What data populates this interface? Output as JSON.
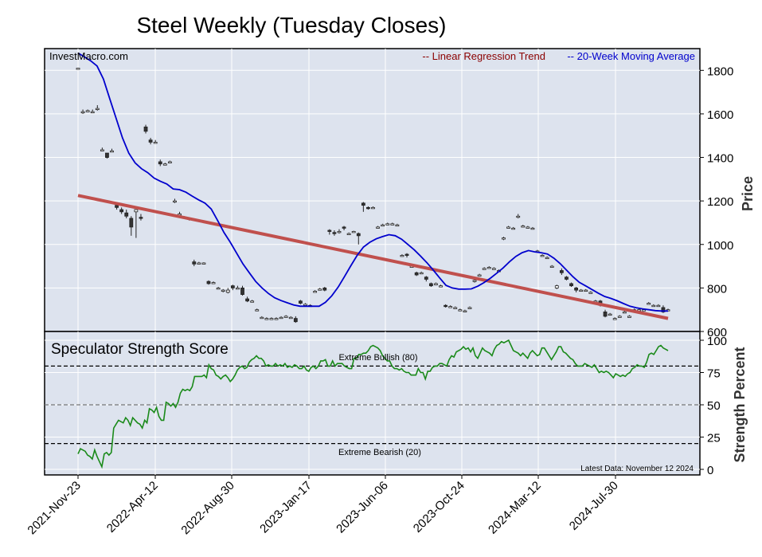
{
  "chart_data": [
    {
      "type": "candlestick",
      "title": "Steel Weekly (Tuesday Closes)",
      "source": "InvestMacro.com",
      "ylabel": "Price",
      "ylim": [
        600,
        1900
      ],
      "yticks": [
        600,
        800,
        1000,
        1200,
        1400,
        1600,
        1800
      ],
      "xticks": [
        "2021-Nov-23",
        "2022-Apr-12",
        "2022-Aug-30",
        "2023-Jan-17",
        "2023-Jun-06",
        "2023-Oct-24",
        "2024-Mar-12",
        "2024-Jul-30"
      ],
      "legend": [
        "-- Linear Regression Trend",
        "-- 20-Week Moving Average"
      ],
      "legend_colors": [
        "#8b0000",
        "#0000cd"
      ],
      "trend": {
        "start": 1225,
        "end": 660
      },
      "moving_average": [
        1880,
        1862,
        1844,
        1820,
        1760,
        1670,
        1580,
        1490,
        1420,
        1375,
        1348,
        1330,
        1305,
        1290,
        1278,
        1255,
        1252,
        1240,
        1222,
        1205,
        1190,
        1163,
        1110,
        1055,
        1010,
        960,
        910,
        870,
        830,
        800,
        775,
        755,
        742,
        732,
        722,
        716,
        716,
        716,
        716,
        734,
        764,
        804,
        852,
        902,
        950,
        988,
        1010,
        1026,
        1036,
        1045,
        1040,
        1024,
        1000,
        975,
        946,
        916,
        882,
        846,
        812,
        800,
        795,
        795,
        796,
        808,
        825,
        845,
        868,
        892,
        920,
        945,
        962,
        972,
        966,
        962,
        956,
        937,
        912,
        882,
        852,
        826,
        810,
        793,
        776,
        761,
        752,
        741,
        728,
        716,
        709,
        704,
        700,
        696,
        694,
        694
      ],
      "candles": [
        [
          1810,
          1810,
          1810,
          1810
        ],
        [
          1610,
          1610,
          1620,
          1600
        ],
        [
          1615,
          1615,
          1620,
          1610
        ],
        [
          1610,
          1610,
          1620,
          1605
        ],
        [
          1625,
          1625,
          1640,
          1615
        ],
        [
          1435,
          1435,
          1445,
          1430
        ],
        [
          1420,
          1400,
          1420,
          1395
        ],
        [
          1430,
          1430,
          1440,
          1425
        ],
        [
          1180,
          1170,
          1190,
          1160
        ],
        [
          1160,
          1150,
          1170,
          1140
        ],
        [
          1145,
          1130,
          1160,
          1120
        ],
        [
          1120,
          1080,
          1130,
          1040
        ],
        [
          1150,
          1160,
          1160,
          1030
        ],
        [
          1125,
          1120,
          1140,
          1110
        ],
        [
          1540,
          1520,
          1550,
          1510
        ],
        [
          1480,
          1470,
          1490,
          1460
        ],
        [
          1470,
          1470,
          1480,
          1465
        ],
        [
          1380,
          1370,
          1390,
          1360
        ],
        [
          1370,
          1370,
          1375,
          1365
        ],
        [
          1380,
          1380,
          1385,
          1375
        ],
        [
          1200,
          1200,
          1210,
          1190
        ],
        [
          1140,
          1140,
          1150,
          1130
        ],
        [
          1125,
          1125,
          1130,
          1120
        ],
        [
          1120,
          1115,
          1125,
          1110
        ],
        [
          920,
          910,
          930,
          900
        ],
        [
          915,
          915,
          920,
          910
        ],
        [
          915,
          915,
          918,
          912
        ],
        [
          830,
          820,
          835,
          815
        ],
        [
          825,
          825,
          830,
          820
        ],
        [
          800,
          800,
          805,
          795
        ],
        [
          790,
          790,
          795,
          780
        ],
        [
          780,
          790,
          800,
          775
        ],
        [
          810,
          800,
          815,
          790
        ],
        [
          800,
          800,
          810,
          795
        ],
        [
          800,
          770,
          810,
          765
        ],
        [
          750,
          740,
          760,
          735
        ],
        [
          740,
          740,
          745,
          735
        ],
        [
          700,
          700,
          705,
          695
        ],
        [
          665,
          665,
          670,
          660
        ],
        [
          660,
          660,
          665,
          655
        ],
        [
          660,
          660,
          665,
          655
        ],
        [
          660,
          660,
          665,
          655
        ],
        [
          665,
          665,
          670,
          660
        ],
        [
          670,
          670,
          675,
          665
        ],
        [
          665,
          665,
          670,
          660
        ],
        [
          660,
          645,
          670,
          640
        ],
        [
          740,
          730,
          745,
          725
        ],
        [
          725,
          725,
          730,
          720
        ],
        [
          720,
          720,
          725,
          715
        ],
        [
          785,
          785,
          790,
          780
        ],
        [
          795,
          795,
          800,
          790
        ],
        [
          800,
          790,
          805,
          785
        ],
        [
          1065,
          1060,
          1070,
          1045
        ],
        [
          1055,
          1050,
          1065,
          1040
        ],
        [
          1060,
          1060,
          1070,
          1050
        ],
        [
          1080,
          1075,
          1085,
          1065
        ],
        [
          1050,
          1050,
          1055,
          1045
        ],
        [
          1060,
          1060,
          1063,
          1057
        ],
        [
          1050,
          1040,
          1055,
          1000
        ],
        [
          1190,
          1180,
          1195,
          1150
        ],
        [
          1170,
          1165,
          1175,
          1160
        ],
        [
          1170,
          1170,
          1175,
          1165
        ],
        [
          1080,
          1080,
          1085,
          1075
        ],
        [
          1090,
          1090,
          1095,
          1085
        ],
        [
          1095,
          1095,
          1100,
          1090
        ],
        [
          1095,
          1095,
          1100,
          1090
        ],
        [
          1090,
          1090,
          1095,
          1085
        ],
        [
          950,
          950,
          955,
          945
        ],
        [
          955,
          950,
          960,
          940
        ],
        [
          900,
          900,
          905,
          895
        ],
        [
          870,
          860,
          875,
          855
        ],
        [
          870,
          870,
          875,
          865
        ],
        [
          850,
          840,
          855,
          830
        ],
        [
          820,
          810,
          825,
          805
        ],
        [
          820,
          820,
          825,
          815
        ],
        [
          810,
          810,
          815,
          805
        ],
        [
          720,
          715,
          725,
          710
        ],
        [
          715,
          715,
          720,
          710
        ],
        [
          710,
          710,
          715,
          705
        ],
        [
          700,
          700,
          705,
          695
        ],
        [
          695,
          695,
          700,
          690
        ],
        [
          710,
          710,
          715,
          705
        ],
        [
          835,
          835,
          840,
          825
        ],
        [
          860,
          860,
          865,
          855
        ],
        [
          890,
          890,
          895,
          885
        ],
        [
          895,
          895,
          900,
          890
        ],
        [
          890,
          890,
          895,
          885
        ],
        [
          880,
          880,
          885,
          875
        ],
        [
          1030,
          1030,
          1035,
          1020
        ],
        [
          1080,
          1080,
          1085,
          1075
        ],
        [
          1075,
          1075,
          1080,
          1070
        ],
        [
          1130,
          1130,
          1140,
          1120
        ],
        [
          1085,
          1085,
          1090,
          1080
        ],
        [
          1080,
          1080,
          1085,
          1075
        ],
        [
          1075,
          1075,
          1080,
          1070
        ],
        [
          970,
          970,
          975,
          965
        ],
        [
          950,
          950,
          955,
          945
        ],
        [
          940,
          940,
          945,
          935
        ],
        [
          900,
          900,
          905,
          895
        ],
        [
          800,
          810,
          815,
          795
        ],
        [
          880,
          870,
          890,
          860
        ],
        [
          850,
          840,
          855,
          835
        ],
        [
          820,
          810,
          825,
          805
        ],
        [
          800,
          790,
          805,
          780
        ],
        [
          790,
          790,
          795,
          785
        ],
        [
          790,
          790,
          795,
          785
        ],
        [
          780,
          780,
          785,
          775
        ],
        [
          740,
          740,
          745,
          735
        ],
        [
          740,
          720,
          745,
          715
        ],
        [
          690,
          670,
          700,
          665
        ],
        [
          680,
          680,
          685,
          675
        ],
        [
          660,
          660,
          665,
          655
        ],
        [
          670,
          670,
          675,
          665
        ],
        [
          690,
          690,
          695,
          685
        ],
        [
          670,
          670,
          675,
          665
        ],
        [
          700,
          700,
          705,
          695
        ],
        [
          700,
          700,
          705,
          695
        ],
        [
          700,
          700,
          705,
          695
        ],
        [
          730,
          730,
          735,
          725
        ],
        [
          720,
          720,
          725,
          715
        ],
        [
          720,
          720,
          725,
          715
        ],
        [
          710,
          690,
          720,
          685
        ],
        [
          700,
          700,
          705,
          695
        ]
      ]
    },
    {
      "type": "line",
      "title": "Speculator Strength Score",
      "ylabel": "Strength Percent",
      "ylim": [
        0,
        100
      ],
      "yticks": [
        0,
        25,
        50,
        75,
        100
      ],
      "annotations": {
        "bullish": "Extreme Bullish (80)",
        "bearish": "Extreme Bearish (20)",
        "latest": "Latest Data: November 12 2024"
      },
      "levels": {
        "bullish": 80,
        "bearish": 20
      },
      "values": [
        12,
        16,
        15,
        14,
        11,
        10,
        8,
        15,
        10,
        6,
        2,
        12,
        13,
        11,
        13,
        32,
        35,
        38,
        37,
        36,
        40,
        38,
        34,
        40,
        38,
        36,
        35,
        32,
        38,
        36,
        47,
        46,
        44,
        48,
        41,
        38,
        38,
        52,
        51,
        49,
        51,
        48,
        52,
        59,
        62,
        61,
        62,
        61,
        64,
        72,
        72,
        72,
        72,
        73,
        71,
        81,
        78,
        77,
        73,
        72,
        70,
        72,
        73,
        71,
        68,
        70,
        73,
        77,
        79,
        80,
        78,
        79,
        83,
        85,
        86,
        88,
        86,
        86,
        84,
        80,
        81,
        80,
        80,
        82,
        80,
        81,
        80,
        82,
        79,
        80,
        79,
        81,
        80,
        78,
        78,
        80,
        77,
        76,
        79,
        80,
        78,
        80,
        84,
        84,
        85,
        80,
        80,
        84,
        80,
        82,
        82,
        82,
        80,
        79,
        78,
        78,
        86,
        86,
        89,
        89,
        90,
        90,
        92,
        95,
        96,
        95,
        94,
        92,
        88,
        86,
        84,
        84,
        80,
        78,
        78,
        77,
        78,
        76,
        75,
        75,
        73,
        73,
        73,
        78,
        75,
        75,
        70,
        76,
        76,
        79,
        80,
        80,
        82,
        82,
        81,
        80,
        85,
        88,
        87,
        91,
        92,
        93,
        95,
        93,
        94,
        91,
        94,
        88,
        86,
        90,
        94,
        92,
        91,
        90,
        88,
        93,
        96,
        97,
        99,
        98,
        99,
        100,
        96,
        92,
        91,
        90,
        88,
        90,
        88,
        86,
        90,
        92,
        90,
        88,
        89,
        94,
        94,
        91,
        88,
        85,
        88,
        91,
        95,
        95,
        91,
        90,
        88,
        86,
        85,
        82,
        80,
        80,
        80,
        82,
        81,
        80,
        79,
        81,
        78,
        75,
        76,
        75,
        76,
        75,
        73,
        71,
        74,
        73,
        72,
        73,
        72,
        74,
        75,
        78,
        79,
        81,
        80,
        80,
        79,
        83,
        89,
        90,
        89,
        92,
        95,
        96,
        94,
        93,
        92
      ],
      "values_note": "ignored"
    }
  ]
}
